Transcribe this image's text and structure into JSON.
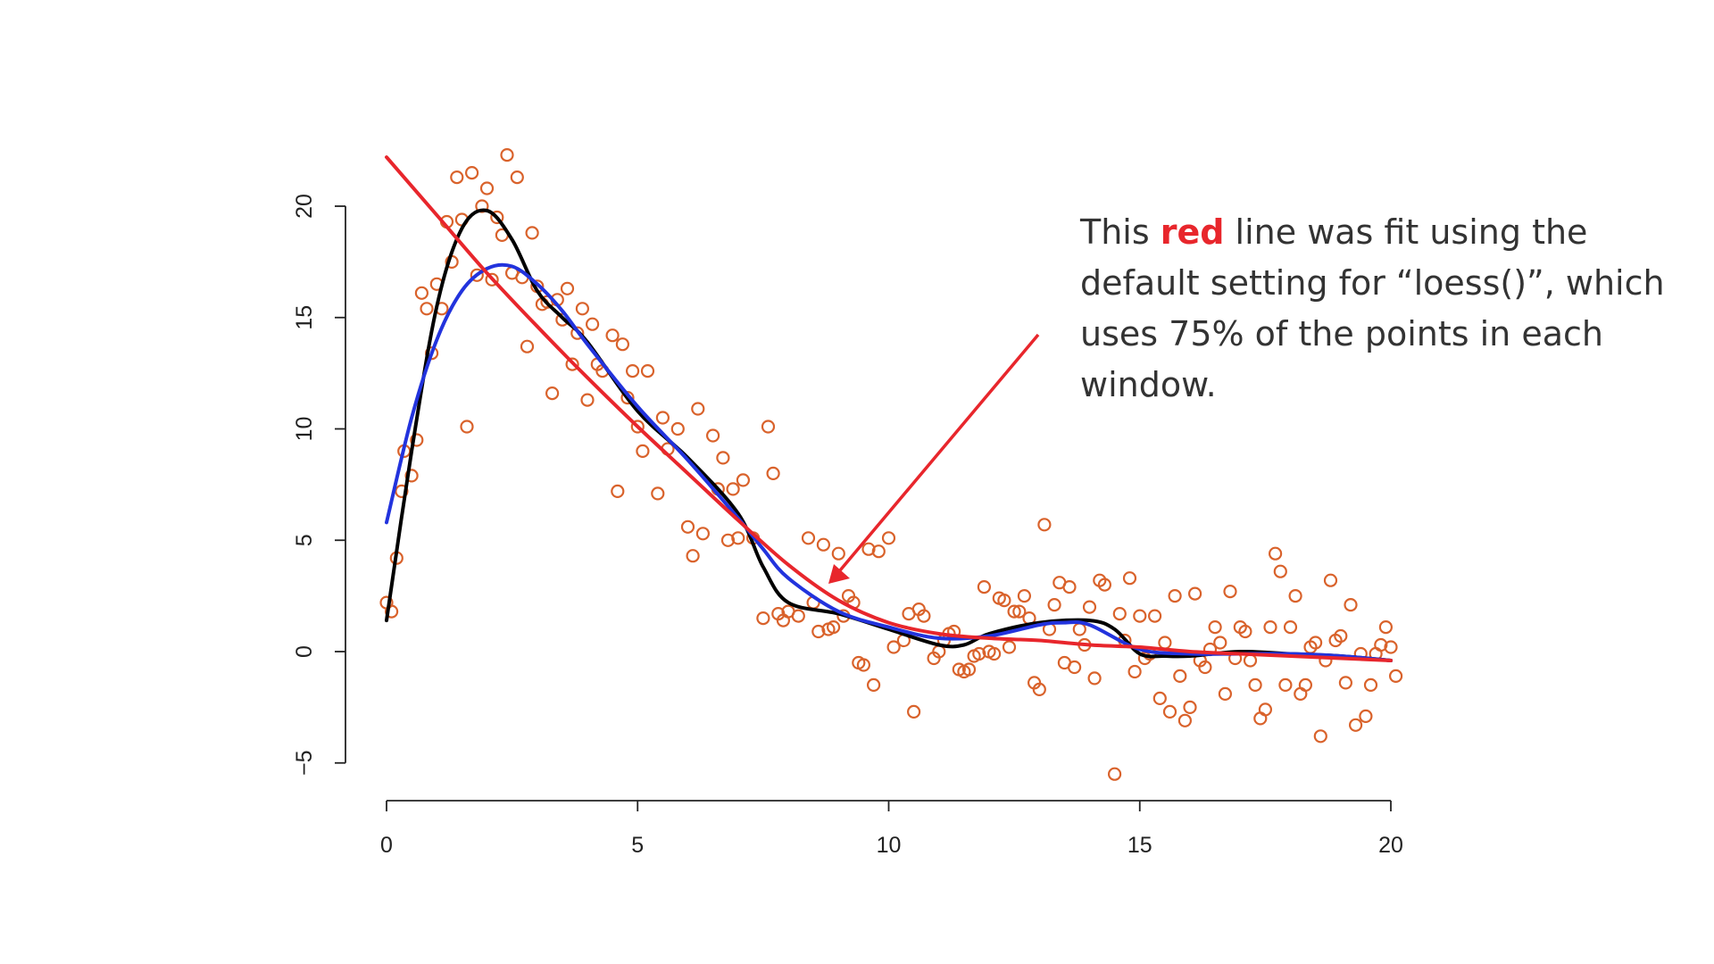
{
  "annotation": {
    "before": "This ",
    "highlight": "red",
    "after": " line was fit using the default setting for “loess()”, which uses 75% of the points in each window."
  },
  "colors": {
    "points": "#d9622b",
    "red_fit": "#e8262c",
    "blue_fit": "#2233dd",
    "black_fit": "#000000",
    "arrow": "#e8262c"
  },
  "chart_data": {
    "type": "scatter",
    "xlim": [
      0,
      20
    ],
    "ylim": [
      -5,
      20
    ],
    "x_ticks": [
      "0",
      "5",
      "10",
      "15",
      "20"
    ],
    "y_ticks": [
      "-5",
      "0",
      "5",
      "10",
      "15",
      "20"
    ],
    "grid": false,
    "points": [
      [
        0.0,
        2.2
      ],
      [
        0.1,
        1.8
      ],
      [
        0.2,
        4.2
      ],
      [
        0.3,
        7.2
      ],
      [
        0.35,
        9.0
      ],
      [
        0.5,
        7.9
      ],
      [
        0.6,
        9.5
      ],
      [
        0.7,
        16.1
      ],
      [
        0.8,
        15.4
      ],
      [
        0.9,
        13.4
      ],
      [
        1.0,
        16.5
      ],
      [
        1.1,
        15.4
      ],
      [
        1.2,
        19.3
      ],
      [
        1.3,
        17.5
      ],
      [
        1.4,
        21.3
      ],
      [
        1.5,
        19.4
      ],
      [
        1.6,
        10.1
      ],
      [
        1.7,
        21.5
      ],
      [
        1.8,
        16.9
      ],
      [
        1.9,
        20.0
      ],
      [
        2.0,
        20.8
      ],
      [
        2.1,
        16.7
      ],
      [
        2.2,
        19.5
      ],
      [
        2.3,
        18.7
      ],
      [
        2.4,
        22.3
      ],
      [
        2.5,
        17.0
      ],
      [
        2.6,
        21.3
      ],
      [
        2.7,
        16.8
      ],
      [
        2.8,
        13.7
      ],
      [
        2.9,
        18.8
      ],
      [
        3.0,
        16.4
      ],
      [
        3.1,
        15.6
      ],
      [
        3.2,
        15.7
      ],
      [
        3.3,
        11.6
      ],
      [
        3.4,
        15.8
      ],
      [
        3.5,
        14.9
      ],
      [
        3.6,
        16.3
      ],
      [
        3.7,
        12.9
      ],
      [
        3.8,
        14.3
      ],
      [
        3.9,
        15.4
      ],
      [
        4.0,
        11.3
      ],
      [
        4.1,
        14.7
      ],
      [
        4.2,
        12.9
      ],
      [
        4.3,
        12.6
      ],
      [
        4.5,
        14.2
      ],
      [
        4.6,
        7.2
      ],
      [
        4.7,
        13.8
      ],
      [
        4.8,
        11.4
      ],
      [
        4.9,
        12.6
      ],
      [
        5.0,
        10.1
      ],
      [
        5.1,
        9.0
      ],
      [
        5.2,
        12.6
      ],
      [
        5.4,
        7.1
      ],
      [
        5.5,
        10.5
      ],
      [
        5.6,
        9.1
      ],
      [
        5.8,
        10.0
      ],
      [
        6.0,
        5.6
      ],
      [
        6.1,
        4.3
      ],
      [
        6.2,
        10.9
      ],
      [
        6.3,
        5.3
      ],
      [
        6.5,
        9.7
      ],
      [
        6.6,
        7.3
      ],
      [
        6.7,
        8.7
      ],
      [
        6.8,
        5.0
      ],
      [
        6.9,
        7.3
      ],
      [
        7.0,
        5.1
      ],
      [
        7.1,
        7.7
      ],
      [
        7.3,
        5.1
      ],
      [
        7.5,
        1.5
      ],
      [
        7.6,
        10.1
      ],
      [
        7.7,
        8.0
      ],
      [
        7.8,
        1.7
      ],
      [
        7.9,
        1.4
      ],
      [
        8.0,
        1.8
      ],
      [
        8.2,
        1.6
      ],
      [
        8.4,
        5.1
      ],
      [
        8.5,
        2.2
      ],
      [
        8.6,
        0.9
      ],
      [
        8.7,
        4.8
      ],
      [
        8.8,
        1.0
      ],
      [
        8.9,
        1.1
      ],
      [
        9.0,
        4.4
      ],
      [
        9.1,
        1.6
      ],
      [
        9.2,
        2.5
      ],
      [
        9.3,
        2.2
      ],
      [
        9.4,
        -0.5
      ],
      [
        9.5,
        -0.6
      ],
      [
        9.6,
        4.6
      ],
      [
        9.7,
        -1.5
      ],
      [
        9.8,
        4.5
      ],
      [
        10.0,
        5.1
      ],
      [
        10.1,
        0.2
      ],
      [
        10.3,
        0.5
      ],
      [
        10.4,
        1.7
      ],
      [
        10.5,
        -2.7
      ],
      [
        10.6,
        1.9
      ],
      [
        10.7,
        1.6
      ],
      [
        10.9,
        -0.3
      ],
      [
        11.0,
        0.0
      ],
      [
        11.1,
        0.5
      ],
      [
        11.2,
        0.8
      ],
      [
        11.3,
        0.9
      ],
      [
        11.4,
        -0.8
      ],
      [
        11.5,
        -0.9
      ],
      [
        11.6,
        -0.8
      ],
      [
        11.7,
        -0.2
      ],
      [
        11.8,
        -0.1
      ],
      [
        11.9,
        2.9
      ],
      [
        12.0,
        0.0
      ],
      [
        12.1,
        -0.1
      ],
      [
        12.2,
        2.4
      ],
      [
        12.3,
        2.3
      ],
      [
        12.4,
        0.2
      ],
      [
        12.5,
        1.8
      ],
      [
        12.6,
        1.8
      ],
      [
        12.7,
        2.5
      ],
      [
        12.8,
        1.5
      ],
      [
        12.9,
        -1.4
      ],
      [
        13.0,
        -1.7
      ],
      [
        13.1,
        5.7
      ],
      [
        13.2,
        1.0
      ],
      [
        13.3,
        2.1
      ],
      [
        13.4,
        3.1
      ],
      [
        13.5,
        -0.5
      ],
      [
        13.6,
        2.9
      ],
      [
        13.7,
        -0.7
      ],
      [
        13.8,
        1.0
      ],
      [
        13.9,
        0.3
      ],
      [
        14.0,
        2.0
      ],
      [
        14.1,
        -1.2
      ],
      [
        14.2,
        3.2
      ],
      [
        14.3,
        3.0
      ],
      [
        14.5,
        -5.5
      ],
      [
        14.6,
        1.7
      ],
      [
        14.7,
        0.5
      ],
      [
        14.8,
        3.3
      ],
      [
        14.9,
        -0.9
      ],
      [
        15.0,
        1.6
      ],
      [
        15.1,
        -0.3
      ],
      [
        15.2,
        -0.1
      ],
      [
        15.3,
        1.6
      ],
      [
        15.4,
        -2.1
      ],
      [
        15.5,
        0.4
      ],
      [
        15.6,
        -2.7
      ],
      [
        15.7,
        2.5
      ],
      [
        15.8,
        -1.1
      ],
      [
        15.9,
        -3.1
      ],
      [
        16.0,
        -2.5
      ],
      [
        16.1,
        2.6
      ],
      [
        16.2,
        -0.4
      ],
      [
        16.3,
        -0.7
      ],
      [
        16.4,
        0.1
      ],
      [
        16.5,
        1.1
      ],
      [
        16.6,
        0.4
      ],
      [
        16.7,
        -1.9
      ],
      [
        16.8,
        2.7
      ],
      [
        16.9,
        -0.3
      ],
      [
        17.0,
        1.1
      ],
      [
        17.1,
        0.9
      ],
      [
        17.2,
        -0.4
      ],
      [
        17.3,
        -1.5
      ],
      [
        17.4,
        -3.0
      ],
      [
        17.5,
        -2.6
      ],
      [
        17.6,
        1.1
      ],
      [
        17.7,
        4.4
      ],
      [
        17.8,
        3.6
      ],
      [
        17.9,
        -1.5
      ],
      [
        18.0,
        1.1
      ],
      [
        18.1,
        2.5
      ],
      [
        18.2,
        -1.9
      ],
      [
        18.3,
        -1.5
      ],
      [
        18.4,
        0.2
      ],
      [
        18.5,
        0.4
      ],
      [
        18.6,
        -3.8
      ],
      [
        18.7,
        -0.4
      ],
      [
        18.8,
        3.2
      ],
      [
        18.9,
        0.5
      ],
      [
        19.0,
        0.7
      ],
      [
        19.1,
        -1.4
      ],
      [
        19.2,
        2.1
      ],
      [
        19.3,
        -3.3
      ],
      [
        19.4,
        -0.1
      ],
      [
        19.5,
        -2.9
      ],
      [
        19.6,
        -1.5
      ],
      [
        19.7,
        -0.1
      ],
      [
        19.8,
        0.3
      ],
      [
        19.9,
        1.1
      ],
      [
        20.0,
        0.2
      ],
      [
        20.1,
        -1.1
      ]
    ],
    "series": [
      {
        "color": "red",
        "x": [
          0,
          1,
          2,
          3,
          4,
          5,
          6,
          7,
          8,
          9,
          10,
          11,
          12,
          13,
          14,
          15,
          16,
          17,
          18,
          19,
          20
        ],
        "y": [
          22.2,
          19.6,
          17.0,
          14.6,
          12.3,
          10.1,
          8.0,
          5.9,
          3.9,
          2.3,
          1.3,
          0.8,
          0.6,
          0.5,
          0.3,
          0.2,
          0.0,
          -0.1,
          -0.2,
          -0.3,
          -0.4
        ]
      },
      {
        "color": "blue",
        "x": [
          0,
          0.5,
          1,
          1.5,
          2,
          2.5,
          3,
          3.5,
          4,
          5,
          6,
          7,
          7.5,
          8,
          9,
          10,
          11,
          12,
          13,
          13.5,
          14,
          15,
          16,
          17,
          18,
          19,
          20
        ],
        "y": [
          5.8,
          10.5,
          14.0,
          16.2,
          17.2,
          17.3,
          16.5,
          15.3,
          13.8,
          11.0,
          8.6,
          6.0,
          4.6,
          3.3,
          1.8,
          1.1,
          0.6,
          0.7,
          1.2,
          1.3,
          1.2,
          0.1,
          -0.1,
          -0.1,
          -0.1,
          -0.2,
          -0.4
        ]
      },
      {
        "color": "black",
        "x": [
          0,
          0.5,
          1,
          1.5,
          2,
          2.5,
          3,
          3.5,
          4,
          5,
          6,
          7,
          7.5,
          8,
          9,
          10,
          11,
          11.5,
          12,
          13,
          14,
          14.5,
          15,
          15.5,
          16,
          17,
          18,
          19,
          20
        ],
        "y": [
          1.4,
          9.0,
          15.5,
          19.0,
          19.8,
          18.5,
          16.2,
          15.0,
          13.9,
          10.8,
          8.7,
          6.2,
          3.8,
          2.2,
          1.7,
          1.0,
          0.3,
          0.3,
          0.8,
          1.3,
          1.4,
          1.0,
          -0.1,
          -0.2,
          -0.2,
          0.0,
          -0.1,
          -0.2,
          -0.4
        ]
      }
    ]
  }
}
